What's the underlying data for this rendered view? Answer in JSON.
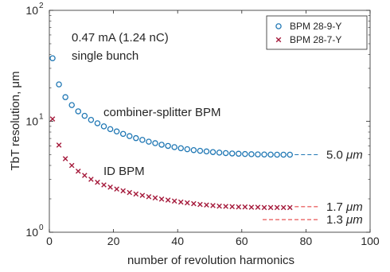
{
  "chart_data": {
    "type": "scatter",
    "xlabel": "number of revolution harmonics",
    "ylabel": "TbT resolution, μm",
    "xlim": [
      0,
      100
    ],
    "ylim": [
      1,
      100
    ],
    "yscale": "log",
    "x_ticks": [
      "0",
      "20",
      "40",
      "60",
      "80",
      "100"
    ],
    "y_ticks": [
      {
        "base": "10",
        "exp": "0",
        "value": 1
      },
      {
        "base": "10",
        "exp": "1",
        "value": 10
      },
      {
        "base": "10",
        "exp": "2",
        "value": 100
      }
    ],
    "grid": false,
    "legend_position": "top-right",
    "series": [
      {
        "name": "BPM 28-9-Y",
        "marker": "circle",
        "color": "#1f77b4",
        "x": [
          1,
          3,
          5,
          7,
          9,
          11,
          13,
          15,
          17,
          19,
          21,
          23,
          25,
          27,
          29,
          31,
          33,
          35,
          37,
          39,
          41,
          43,
          45,
          47,
          49,
          51,
          53,
          55,
          57,
          59,
          61,
          63,
          65,
          67,
          69,
          71,
          73,
          75
        ],
        "y": [
          37,
          21.5,
          16.5,
          14,
          12.3,
          11.2,
          10.3,
          9.6,
          9.0,
          8.5,
          8.1,
          7.7,
          7.35,
          7.05,
          6.8,
          6.55,
          6.35,
          6.15,
          6.0,
          5.85,
          5.72,
          5.6,
          5.5,
          5.42,
          5.35,
          5.28,
          5.22,
          5.17,
          5.13,
          5.1,
          5.07,
          5.05,
          5.03,
          5.02,
          5.01,
          5.0,
          5.0,
          5.0
        ]
      },
      {
        "name": "BPM 28-7-Y",
        "marker": "x",
        "color": "#a51a3b",
        "x": [
          1,
          3,
          5,
          7,
          9,
          11,
          13,
          15,
          17,
          19,
          21,
          23,
          25,
          27,
          29,
          31,
          33,
          35,
          37,
          39,
          41,
          43,
          45,
          47,
          49,
          51,
          53,
          55,
          57,
          59,
          61,
          63,
          65,
          67,
          69,
          71,
          73,
          75
        ],
        "y": [
          10.5,
          6.1,
          4.6,
          4.0,
          3.55,
          3.25,
          3.0,
          2.82,
          2.67,
          2.55,
          2.45,
          2.36,
          2.28,
          2.21,
          2.15,
          2.09,
          2.04,
          1.99,
          1.95,
          1.91,
          1.87,
          1.84,
          1.81,
          1.78,
          1.76,
          1.74,
          1.72,
          1.71,
          1.7,
          1.69,
          1.69,
          1.68,
          1.68,
          1.67,
          1.67,
          1.67,
          1.67,
          1.67
        ]
      }
    ],
    "annotations": {
      "beam": {
        "line1": "0.47 mA (1.24 nC)",
        "line2": "single bunch",
        "color": "#1f1fd6"
      },
      "combiner": {
        "text": "combiner-splitter BPM",
        "color": "#1f77b4"
      },
      "id_bpm": {
        "text": "ID BPM",
        "color": "#a51a3b"
      },
      "level_50": {
        "value": "5.0",
        "unit": "μm",
        "y": 5.0,
        "color": "#1f77b4"
      },
      "level_17": {
        "value": "1.7",
        "unit": "μm",
        "y": 1.7,
        "color": "#e22b2b"
      },
      "level_13": {
        "value": "1.3",
        "unit": "μm",
        "y": 1.3,
        "color": "#e22b2b"
      }
    }
  }
}
